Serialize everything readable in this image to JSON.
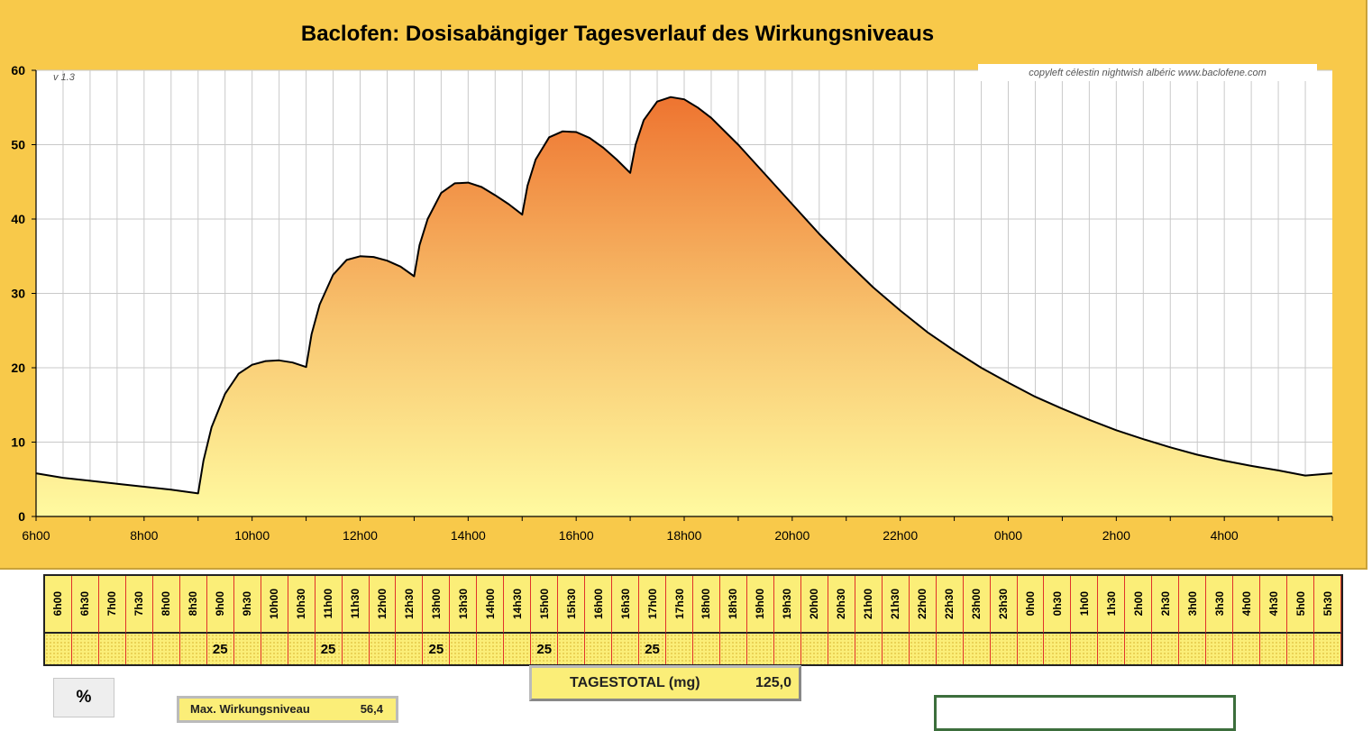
{
  "chart_data": {
    "type": "area",
    "title": "Baclofen: Dosisabängiger Tagesverlauf des Wirkungsniveaus",
    "credit": "copyleft  célestin  nightwish  albéric  www.baclofene.com",
    "version": "v 1.3",
    "ylim": [
      0,
      60
    ],
    "yticks": [
      0,
      10,
      20,
      30,
      40,
      50,
      60
    ],
    "xlim": [
      6,
      30
    ],
    "xticks": [
      {
        "x": 6,
        "label": "6h00"
      },
      {
        "x": 8,
        "label": "8h00"
      },
      {
        "x": 10,
        "label": "10h00"
      },
      {
        "x": 12,
        "label": "12h00"
      },
      {
        "x": 14,
        "label": "14h00"
      },
      {
        "x": 16,
        "label": "16h00"
      },
      {
        "x": 18,
        "label": "18h00"
      },
      {
        "x": 20,
        "label": "20h00"
      },
      {
        "x": 22,
        "label": "22h00"
      },
      {
        "x": 24,
        "label": "0h00"
      },
      {
        "x": 26,
        "label": "2h00"
      },
      {
        "x": 28,
        "label": "4h00"
      }
    ],
    "grid": true,
    "colors": {
      "fill_top": "#ee7430",
      "fill_bottom": "#fffaa0",
      "line": "#000000"
    },
    "points": [
      [
        6,
        5.8
      ],
      [
        6.5,
        5.2
      ],
      [
        7,
        4.8
      ],
      [
        7.5,
        4.4
      ],
      [
        8,
        4.0
      ],
      [
        8.5,
        3.6
      ],
      [
        9,
        3.1
      ],
      [
        9.1,
        7.5
      ],
      [
        9.25,
        12.0
      ],
      [
        9.5,
        16.5
      ],
      [
        9.75,
        19.2
      ],
      [
        10,
        20.4
      ],
      [
        10.25,
        20.9
      ],
      [
        10.5,
        21.0
      ],
      [
        10.75,
        20.7
      ],
      [
        11,
        20.1
      ],
      [
        11.1,
        24.5
      ],
      [
        11.25,
        28.5
      ],
      [
        11.5,
        32.5
      ],
      [
        11.75,
        34.5
      ],
      [
        12,
        35.0
      ],
      [
        12.25,
        34.9
      ],
      [
        12.5,
        34.4
      ],
      [
        12.75,
        33.6
      ],
      [
        13,
        32.3
      ],
      [
        13.1,
        36.5
      ],
      [
        13.25,
        40.0
      ],
      [
        13.5,
        43.5
      ],
      [
        13.75,
        44.8
      ],
      [
        14,
        44.9
      ],
      [
        14.25,
        44.3
      ],
      [
        14.5,
        43.2
      ],
      [
        14.75,
        42.0
      ],
      [
        15,
        40.6
      ],
      [
        15.1,
        44.5
      ],
      [
        15.25,
        48.0
      ],
      [
        15.5,
        51.0
      ],
      [
        15.75,
        51.8
      ],
      [
        16,
        51.7
      ],
      [
        16.25,
        50.9
      ],
      [
        16.5,
        49.6
      ],
      [
        16.75,
        48.0
      ],
      [
        17,
        46.2
      ],
      [
        17.1,
        50.0
      ],
      [
        17.25,
        53.3
      ],
      [
        17.5,
        55.8
      ],
      [
        17.75,
        56.4
      ],
      [
        18,
        56.1
      ],
      [
        18.25,
        55.0
      ],
      [
        18.5,
        53.6
      ],
      [
        19,
        50.0
      ],
      [
        19.5,
        46.0
      ],
      [
        20,
        42.0
      ],
      [
        20.5,
        38.0
      ],
      [
        21,
        34.3
      ],
      [
        21.5,
        30.8
      ],
      [
        22,
        27.7
      ],
      [
        22.5,
        24.8
      ],
      [
        23,
        22.3
      ],
      [
        23.5,
        20.0
      ],
      [
        24,
        18.0
      ],
      [
        24.5,
        16.1
      ],
      [
        25,
        14.5
      ],
      [
        25.5,
        13.0
      ],
      [
        26,
        11.6
      ],
      [
        26.5,
        10.4
      ],
      [
        27,
        9.3
      ],
      [
        27.5,
        8.3
      ],
      [
        28,
        7.5
      ],
      [
        28.5,
        6.8
      ],
      [
        29,
        6.2
      ],
      [
        29.5,
        5.5
      ],
      [
        30,
        5.8
      ]
    ]
  },
  "schedule": {
    "times": [
      "6h00",
      "6h30",
      "7h00",
      "7h30",
      "8h00",
      "8h30",
      "9h00",
      "9h30",
      "10h00",
      "10h30",
      "11h00",
      "11h30",
      "12h00",
      "12h30",
      "13h00",
      "13h30",
      "14h00",
      "14h30",
      "15h00",
      "15h30",
      "16h00",
      "16h30",
      "17h00",
      "17h30",
      "18h00",
      "18h30",
      "19h00",
      "19h30",
      "20h00",
      "20h30",
      "21h00",
      "21h30",
      "22h00",
      "22h30",
      "23h00",
      "23h30",
      "0h00",
      "0h30",
      "1h00",
      "1h30",
      "2h00",
      "2h30",
      "3h00",
      "3h30",
      "4h00",
      "4h30",
      "5h00",
      "5h30"
    ],
    "doses": [
      "",
      "",
      "",
      "",
      "",
      "",
      "25",
      "",
      "",
      "",
      "25",
      "",
      "",
      "",
      "25",
      "",
      "",
      "",
      "25",
      "",
      "",
      "",
      "25",
      "",
      "",
      "",
      "",
      "",
      "",
      "",
      "",
      "",
      "",
      "",
      "",
      "",
      "",
      "",
      "",
      "",
      "",
      "",
      "",
      "",
      "",
      "",
      "",
      ""
    ]
  },
  "total": {
    "label": "TAGESTOTAL (mg)",
    "value": "125,0"
  },
  "percent_button": {
    "label": "%"
  },
  "max_level": {
    "label": "Max. Wirkungsniveau",
    "value": "56,4"
  }
}
